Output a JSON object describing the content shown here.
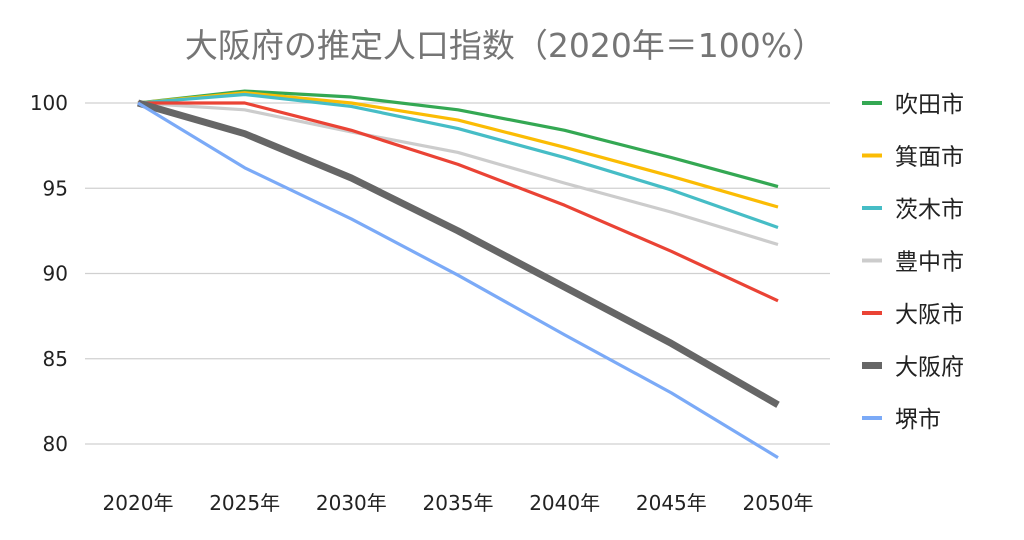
{
  "chart_data": {
    "type": "line",
    "title": "大阪府の推定人口指数（2020年＝100%）",
    "xlabel": "",
    "ylabel": "",
    "categories": [
      "2020年",
      "2025年",
      "2030年",
      "2035年",
      "2040年",
      "2045年",
      "2050年"
    ],
    "ylim": [
      80,
      100
    ],
    "yticks": [
      100,
      95,
      90,
      85,
      80
    ],
    "grid": true,
    "legend_position": "right",
    "series": [
      {
        "name": "吹田市",
        "color": "#34a853",
        "values": [
          100,
          100.7,
          100.35,
          99.6,
          98.4,
          96.8,
          95.1
        ]
      },
      {
        "name": "箕面市",
        "color": "#fbbc04",
        "values": [
          100,
          100.6,
          100.0,
          99.0,
          97.4,
          95.7,
          93.9
        ]
      },
      {
        "name": "茨木市",
        "color": "#46bdc6",
        "values": [
          100,
          100.5,
          99.8,
          98.5,
          96.8,
          94.9,
          92.7
        ]
      },
      {
        "name": "豊中市",
        "color": "#cccccc",
        "values": [
          100,
          99.6,
          98.3,
          97.1,
          95.3,
          93.6,
          91.7
        ]
      },
      {
        "name": "大阪市",
        "color": "#ea4335",
        "values": [
          100,
          100.0,
          98.4,
          96.4,
          94.0,
          91.3,
          88.4
        ]
      },
      {
        "name": "大阪府",
        "color": "#666666",
        "values": [
          100,
          98.2,
          95.6,
          92.5,
          89.2,
          85.9,
          82.3
        ],
        "bold": true
      },
      {
        "name": "堺市",
        "color": "#7baaf7",
        "values": [
          100,
          96.2,
          93.2,
          89.9,
          86.4,
          83.0,
          79.2
        ]
      }
    ]
  }
}
